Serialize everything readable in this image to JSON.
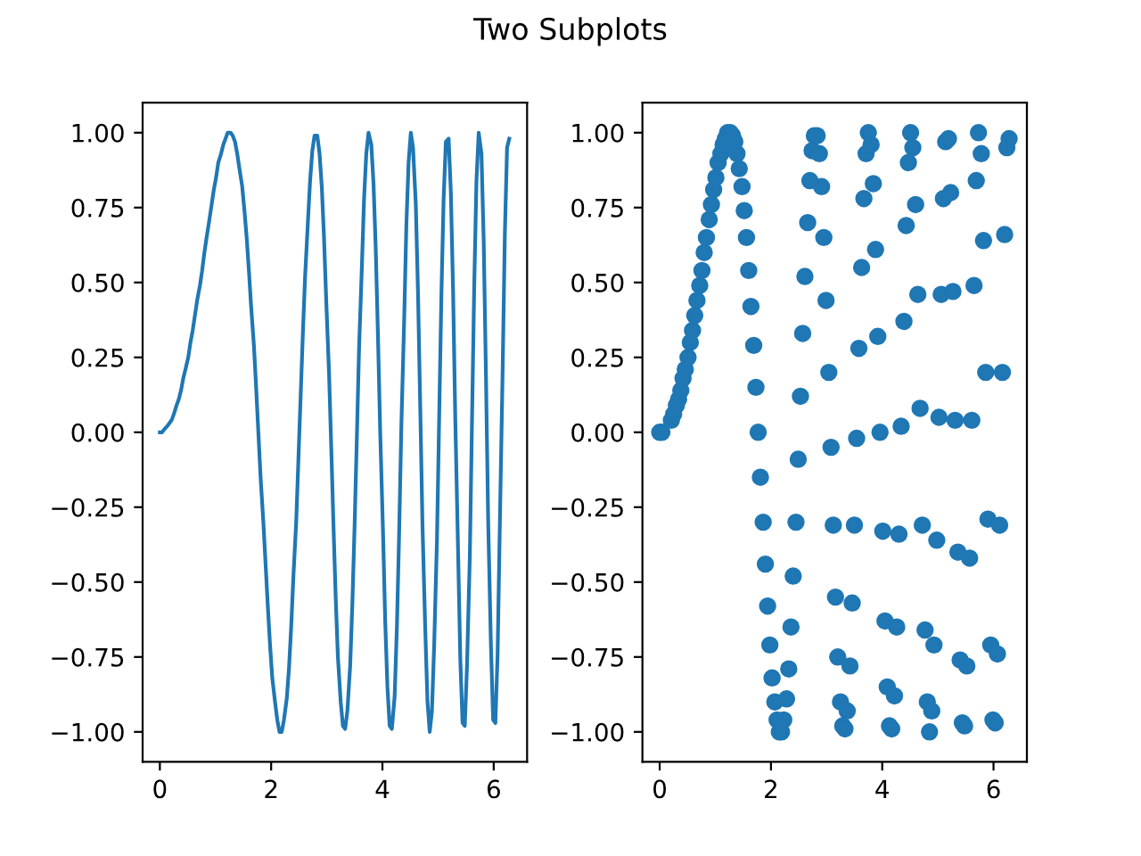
{
  "chart_data": [
    {
      "type": "line",
      "title": "Two Subplots",
      "color": "#1f77b4",
      "x": [
        0.0,
        0.04,
        0.08,
        0.13,
        0.17,
        0.21,
        0.25,
        0.3,
        0.34,
        0.38,
        0.42,
        0.46,
        0.51,
        0.55,
        0.59,
        0.63,
        0.67,
        0.72,
        0.76,
        0.8,
        0.84,
        0.89,
        0.93,
        0.97,
        1.01,
        1.05,
        1.1,
        1.14,
        1.18,
        1.22,
        1.27,
        1.31,
        1.35,
        1.39,
        1.43,
        1.48,
        1.52,
        1.56,
        1.6,
        1.64,
        1.69,
        1.73,
        1.77,
        1.81,
        1.86,
        1.9,
        1.94,
        1.98,
        2.02,
        2.07,
        2.11,
        2.15,
        2.19,
        2.23,
        2.28,
        2.32,
        2.36,
        2.4,
        2.45,
        2.49,
        2.53,
        2.57,
        2.61,
        2.66,
        2.7,
        2.74,
        2.78,
        2.83,
        2.87,
        2.91,
        2.95,
        2.99,
        3.04,
        3.08,
        3.12,
        3.16,
        3.2,
        3.25,
        3.29,
        3.33,
        3.37,
        3.42,
        3.46,
        3.5,
        3.54,
        3.58,
        3.63,
        3.67,
        3.71,
        3.75,
        3.8,
        3.84,
        3.88,
        3.92,
        3.96,
        4.01,
        4.05,
        4.09,
        4.13,
        4.17,
        4.22,
        4.26,
        4.3,
        4.34,
        4.39,
        4.43,
        4.47,
        4.51,
        4.55,
        4.6,
        4.64,
        4.68,
        4.72,
        4.77,
        4.81,
        4.85,
        4.89,
        4.93,
        4.98,
        5.02,
        5.06,
        5.1,
        5.14,
        5.19,
        5.23,
        5.27,
        5.31,
        5.36,
        5.4,
        5.44,
        5.48,
        5.52,
        5.57,
        5.61,
        5.65,
        5.69,
        5.73,
        5.78,
        5.82,
        5.86,
        5.9,
        5.95,
        5.99,
        6.03,
        6.07,
        6.11,
        6.16,
        6.2,
        6.24,
        6.28
      ],
      "values": [
        0.0,
        0.0,
        0.01,
        0.02,
        0.03,
        0.04,
        0.06,
        0.09,
        0.11,
        0.14,
        0.18,
        0.21,
        0.25,
        0.3,
        0.34,
        0.39,
        0.44,
        0.49,
        0.54,
        0.6,
        0.65,
        0.71,
        0.76,
        0.81,
        0.85,
        0.9,
        0.93,
        0.96,
        0.98,
        1.0,
        1.0,
        0.99,
        0.97,
        0.93,
        0.88,
        0.82,
        0.74,
        0.65,
        0.54,
        0.42,
        0.29,
        0.15,
        0.0,
        -0.15,
        -0.3,
        -0.44,
        -0.58,
        -0.71,
        -0.82,
        -0.9,
        -0.96,
        -1.0,
        -1.0,
        -0.96,
        -0.89,
        -0.79,
        -0.65,
        -0.48,
        -0.3,
        -0.09,
        0.12,
        0.33,
        0.52,
        0.7,
        0.84,
        0.94,
        0.99,
        0.99,
        0.93,
        0.82,
        0.65,
        0.44,
        0.2,
        -0.05,
        -0.31,
        -0.55,
        -0.75,
        -0.9,
        -0.98,
        -0.99,
        -0.93,
        -0.78,
        -0.57,
        -0.31,
        -0.02,
        0.28,
        0.55,
        0.78,
        0.93,
        1.0,
        0.96,
        0.83,
        0.61,
        0.32,
        0.0,
        -0.33,
        -0.63,
        -0.85,
        -0.98,
        -0.99,
        -0.88,
        -0.65,
        -0.34,
        0.02,
        0.37,
        0.69,
        0.9,
        1.0,
        0.95,
        0.76,
        0.46,
        0.08,
        -0.31,
        -0.66,
        -0.9,
        -1.0,
        -0.93,
        -0.71,
        -0.36,
        0.05,
        0.46,
        0.78,
        0.97,
        0.98,
        0.8,
        0.47,
        0.04,
        -0.4,
        -0.76,
        -0.97,
        -0.98,
        -0.78,
        -0.42,
        0.04,
        0.49,
        0.84,
        1.0,
        0.93,
        0.64,
        0.2,
        -0.29,
        -0.71,
        -0.96,
        -0.97,
        -0.74,
        -0.31,
        0.2,
        0.66,
        0.95,
        0.98
      ],
      "xlim": [
        -0.31,
        6.6
      ],
      "ylim": [
        -1.1,
        1.1
      ],
      "xticks": [
        0,
        2,
        4,
        6
      ],
      "yticks": [
        {
          "value": -1,
          "label": "−1.00"
        },
        {
          "value": -0.75,
          "label": "−0.75"
        },
        {
          "value": -0.5,
          "label": "−0.50"
        },
        {
          "value": -0.25,
          "label": "−0.25"
        },
        {
          "value": 0,
          "label": "0.00"
        },
        {
          "value": 0.25,
          "label": "0.25"
        },
        {
          "value": 0.5,
          "label": "0.50"
        },
        {
          "value": 0.75,
          "label": "0.75"
        },
        {
          "value": 1,
          "label": "1.00"
        }
      ],
      "grid": false
    },
    {
      "type": "scatter",
      "color": "#1f77b4",
      "marker": "circle",
      "x": [
        0.0,
        0.04,
        0.21,
        0.25,
        0.3,
        0.34,
        0.38,
        0.42,
        0.46,
        0.51,
        0.55,
        0.59,
        0.63,
        0.67,
        0.72,
        0.76,
        0.8,
        0.84,
        0.89,
        0.93,
        0.97,
        1.01,
        1.05,
        1.1,
        1.14,
        1.18,
        1.22,
        1.27,
        1.31,
        1.35,
        1.39,
        1.43,
        1.48,
        1.52,
        1.56,
        1.6,
        1.64,
        1.69,
        1.73,
        1.77,
        1.81,
        1.86,
        1.9,
        1.94,
        1.98,
        2.02,
        2.07,
        2.11,
        2.15,
        2.19,
        2.23,
        2.28,
        2.32,
        2.36,
        2.4,
        2.45,
        2.49,
        2.53,
        2.57,
        2.61,
        2.66,
        2.7,
        2.74,
        2.78,
        2.83,
        2.87,
        2.91,
        2.95,
        2.99,
        3.04,
        3.08,
        3.12,
        3.16,
        3.2,
        3.25,
        3.29,
        3.33,
        3.37,
        3.42,
        3.46,
        3.5,
        3.54,
        3.58,
        3.63,
        3.67,
        3.71,
        3.75,
        3.8,
        3.84,
        3.88,
        3.92,
        3.96,
        4.01,
        4.05,
        4.09,
        4.13,
        4.17,
        4.22,
        4.26,
        4.3,
        4.34,
        4.39,
        4.43,
        4.47,
        4.51,
        4.55,
        4.6,
        4.64,
        4.68,
        4.72,
        4.77,
        4.81,
        4.85,
        4.89,
        4.93,
        4.98,
        5.02,
        5.06,
        5.1,
        5.14,
        5.19,
        5.23,
        5.27,
        5.31,
        5.36,
        5.4,
        5.44,
        5.48,
        5.52,
        5.57,
        5.61,
        5.65,
        5.69,
        5.73,
        5.78,
        5.82,
        5.86,
        5.9,
        5.95,
        5.99,
        6.03,
        6.07,
        6.11,
        6.16,
        6.2,
        6.24,
        6.28
      ],
      "values": [
        0.0,
        0.0,
        0.04,
        0.06,
        0.09,
        0.11,
        0.14,
        0.18,
        0.21,
        0.25,
        0.3,
        0.34,
        0.39,
        0.44,
        0.49,
        0.54,
        0.6,
        0.65,
        0.71,
        0.76,
        0.81,
        0.85,
        0.9,
        0.93,
        0.96,
        0.98,
        1.0,
        1.0,
        0.99,
        0.97,
        0.93,
        0.88,
        0.82,
        0.74,
        0.65,
        0.54,
        0.42,
        0.29,
        0.15,
        0.0,
        -0.15,
        -0.3,
        -0.44,
        -0.58,
        -0.71,
        -0.82,
        -0.9,
        -0.96,
        -1.0,
        -1.0,
        -0.96,
        -0.89,
        -0.79,
        -0.65,
        -0.48,
        -0.3,
        -0.09,
        0.12,
        0.33,
        0.52,
        0.7,
        0.84,
        0.94,
        0.99,
        0.99,
        0.93,
        0.82,
        0.65,
        0.44,
        0.2,
        -0.05,
        -0.31,
        -0.55,
        -0.75,
        -0.9,
        -0.98,
        -0.99,
        -0.93,
        -0.78,
        -0.57,
        -0.31,
        -0.02,
        0.28,
        0.55,
        0.78,
        0.93,
        1.0,
        0.96,
        0.83,
        0.61,
        0.32,
        0.0,
        -0.33,
        -0.63,
        -0.85,
        -0.98,
        -0.99,
        -0.88,
        -0.65,
        -0.34,
        0.02,
        0.37,
        0.69,
        0.9,
        1.0,
        0.95,
        0.76,
        0.46,
        0.08,
        -0.31,
        -0.66,
        -0.9,
        -1.0,
        -0.93,
        -0.71,
        -0.36,
        0.05,
        0.46,
        0.78,
        0.97,
        0.98,
        0.8,
        0.47,
        0.04,
        -0.4,
        -0.76,
        -0.97,
        -0.98,
        -0.78,
        -0.42,
        0.04,
        0.49,
        0.84,
        1.0,
        0.93,
        0.64,
        0.2,
        -0.29,
        -0.71,
        -0.96,
        -0.97,
        -0.74,
        -0.31,
        0.2,
        0.66,
        0.95,
        0.98
      ],
      "xlim": [
        -0.31,
        6.6
      ],
      "ylim": [
        -1.1,
        1.1
      ],
      "xticks": [
        0,
        2,
        4,
        6
      ],
      "yticks": [
        {
          "value": -1,
          "label": "−1.00"
        },
        {
          "value": -0.75,
          "label": "−0.75"
        },
        {
          "value": -0.5,
          "label": "−0.50"
        },
        {
          "value": -0.25,
          "label": "−0.25"
        },
        {
          "value": 0,
          "label": "0.00"
        },
        {
          "value": 0.25,
          "label": "0.25"
        },
        {
          "value": 0.5,
          "label": "0.50"
        },
        {
          "value": 0.75,
          "label": "0.75"
        },
        {
          "value": 1,
          "label": "1.00"
        }
      ],
      "grid": false
    }
  ]
}
